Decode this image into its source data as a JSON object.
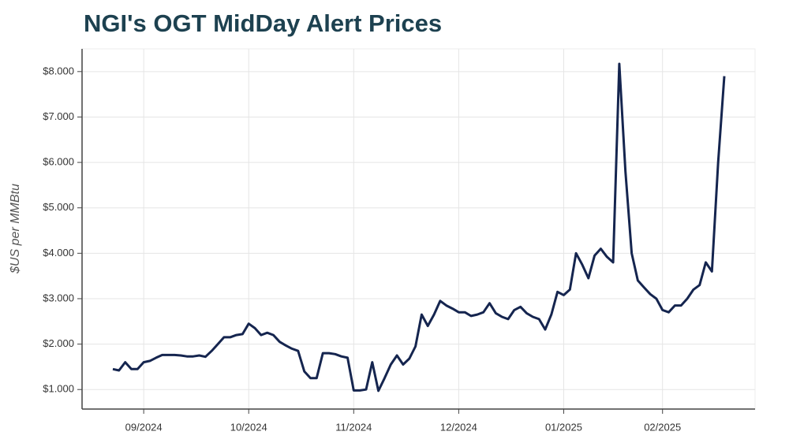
{
  "chart_data": {
    "type": "line",
    "title": "NGI's OGT MidDay Alert Prices",
    "y_label": "$US per MMBtu",
    "categories": [
      null,
      null,
      null,
      null,
      null,
      "09/2024",
      null,
      null,
      null,
      null,
      null,
      null,
      null,
      null,
      null,
      null,
      null,
      null,
      null,
      null,
      null,
      null,
      "10/2024",
      null,
      null,
      null,
      null,
      null,
      null,
      null,
      null,
      null,
      null,
      null,
      null,
      null,
      null,
      null,
      null,
      "11/2024",
      null,
      null,
      null,
      null,
      null,
      null,
      null,
      null,
      null,
      null,
      null,
      null,
      null,
      null,
      null,
      null,
      "12/2024",
      null,
      null,
      null,
      null,
      null,
      null,
      null,
      null,
      null,
      null,
      null,
      null,
      null,
      null,
      null,
      null,
      "01/2025",
      null,
      null,
      null,
      null,
      null,
      null,
      null,
      null,
      null,
      null,
      null,
      null,
      null,
      null,
      null,
      "02/2025",
      null,
      null,
      null,
      null,
      null,
      null,
      null,
      null,
      null,
      null
    ],
    "series": [
      {
        "name": "OGT MidDay Alert",
        "color": "#15254f",
        "values": [
          1.45,
          1.42,
          1.6,
          1.45,
          1.45,
          1.6,
          1.63,
          1.7,
          1.76,
          1.76,
          1.76,
          1.75,
          1.73,
          1.73,
          1.75,
          1.72,
          1.85,
          2.0,
          2.15,
          2.15,
          2.2,
          2.22,
          2.45,
          2.35,
          2.2,
          2.25,
          2.2,
          2.05,
          1.97,
          1.9,
          1.85,
          1.4,
          1.25,
          1.25,
          1.8,
          1.8,
          1.78,
          1.73,
          1.7,
          0.98,
          0.98,
          1.0,
          1.6,
          0.97,
          1.25,
          1.55,
          1.75,
          1.55,
          1.68,
          1.95,
          2.65,
          2.4,
          2.65,
          2.95,
          2.85,
          2.78,
          2.7,
          2.7,
          2.62,
          2.65,
          2.7,
          2.9,
          2.68,
          2.6,
          2.55,
          2.75,
          2.82,
          2.68,
          2.6,
          2.55,
          2.32,
          2.65,
          3.15,
          3.08,
          3.2,
          4.0,
          3.75,
          3.45,
          3.95,
          4.1,
          3.92,
          3.8,
          8.17,
          5.8,
          4.0,
          3.4,
          3.25,
          3.1,
          3.0,
          2.75,
          2.7,
          2.85,
          2.85,
          3.0,
          3.2,
          3.3,
          3.8,
          3.6,
          6.0,
          7.9
        ]
      }
    ],
    "ylim": [
      0.57,
      8.5
    ],
    "yticks": [
      {
        "value": 1,
        "label": "$1.000"
      },
      {
        "value": 2,
        "label": "$2.000"
      },
      {
        "value": 3,
        "label": "$3.000"
      },
      {
        "value": 4,
        "label": "$4.000"
      },
      {
        "value": 5,
        "label": "$5.000"
      },
      {
        "value": 6,
        "label": "$6.000"
      },
      {
        "value": 7,
        "label": "$7.000"
      },
      {
        "value": 8,
        "label": "$8.000"
      }
    ],
    "grid": true
  }
}
